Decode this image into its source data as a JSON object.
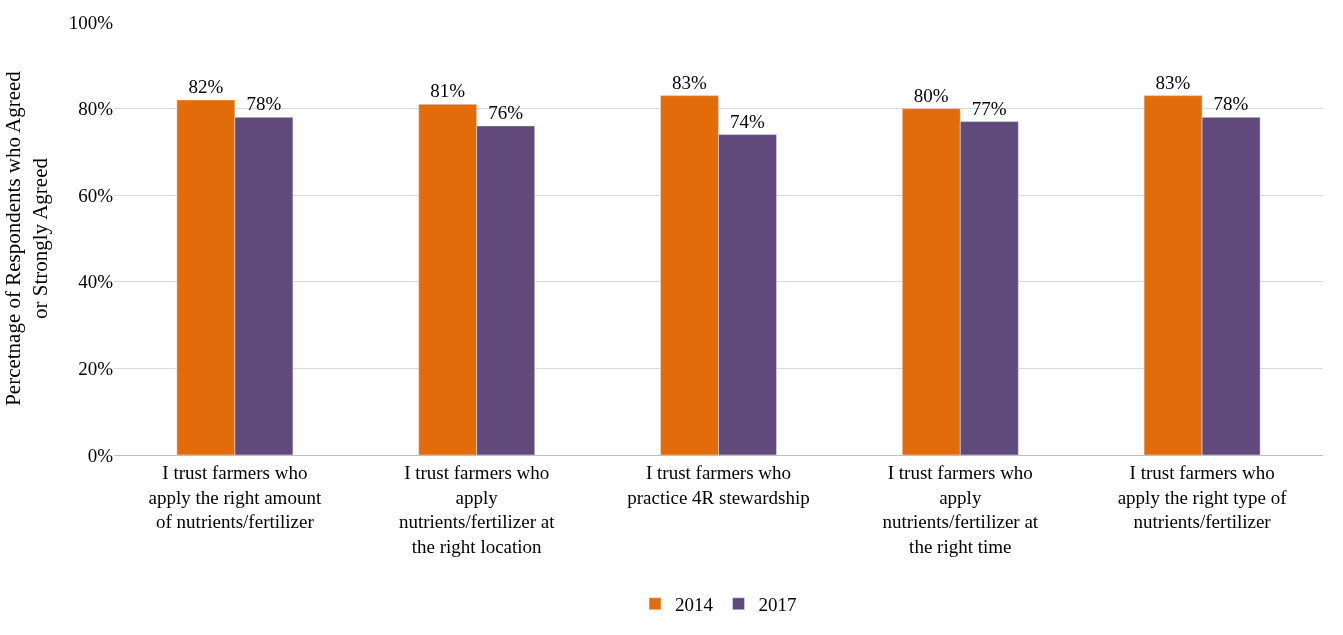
{
  "chart_data": {
    "type": "bar",
    "ylabel": "Percetnage of Respondents who Agreed or Strongly Agreed",
    "categories": [
      "I trust farmers who apply the right amount of nutrients/fertilizer",
      "I trust farmers who apply nutrients/fertilizer at the right location",
      "I trust farmers who practice 4R stewardship",
      "I trust farmers who apply nutrients/fertilizer at the right time",
      "I trust farmers who apply the right type of nutrients/fertilizer"
    ],
    "series": [
      {
        "name": "2014",
        "color": "#e36c0a",
        "values": [
          82,
          81,
          83,
          80,
          83
        ],
        "value_labels": [
          "82%",
          "81%",
          "83%",
          "80%",
          "83%"
        ]
      },
      {
        "name": "2017",
        "color": "#604a7b",
        "values": [
          78,
          76,
          74,
          77,
          78
        ],
        "value_labels": [
          "78%",
          "76%",
          "74%",
          "77%",
          "78%"
        ]
      }
    ],
    "ylim": [
      0,
      100
    ],
    "yticks": [
      {
        "value": 0,
        "label": "0%"
      },
      {
        "value": 20,
        "label": "20%"
      },
      {
        "value": 40,
        "label": "40%"
      },
      {
        "value": 60,
        "label": "60%"
      },
      {
        "value": 80,
        "label": "80%"
      },
      {
        "value": 100,
        "label": "100%"
      }
    ],
    "grid": "y",
    "legend": "bottom"
  }
}
